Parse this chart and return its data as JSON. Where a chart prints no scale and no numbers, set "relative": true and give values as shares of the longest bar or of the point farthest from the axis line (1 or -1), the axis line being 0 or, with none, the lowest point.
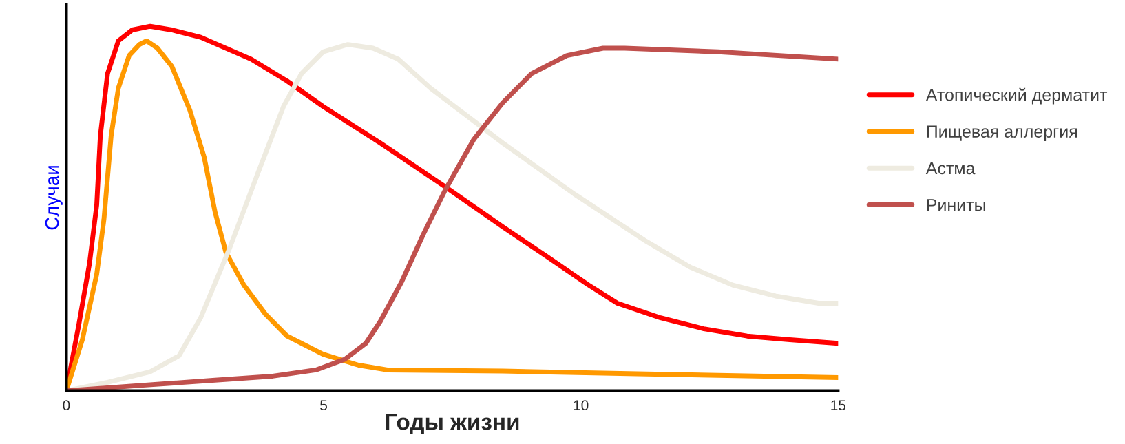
{
  "chart_data": {
    "type": "line",
    "relative": true,
    "xlabel": "Годы жизни",
    "ylabel": "Случаи",
    "xlim": [
      0,
      15
    ],
    "xticks": [
      0,
      5,
      10,
      15
    ],
    "grid": false,
    "legend": "right",
    "line_style": "solid",
    "marker": "none",
    "series": [
      {
        "name": "Атопический дерматит",
        "color": "#ff0000",
        "x": [
          0,
          0.24,
          0.45,
          0.59,
          0.66,
          0.8,
          1.01,
          1.28,
          1.63,
          2.05,
          2.61,
          3.59,
          4.29,
          4.99,
          6.1,
          7.36,
          8.48,
          9.32,
          10.15,
          10.71,
          11.55,
          12.39,
          13.23,
          14.06,
          15
        ],
        "values": [
          0,
          0.18,
          0.35,
          0.51,
          0.7,
          0.87,
          0.96,
          0.99,
          1.0,
          0.99,
          0.97,
          0.91,
          0.85,
          0.78,
          0.68,
          0.56,
          0.45,
          0.37,
          0.29,
          0.24,
          0.2,
          0.17,
          0.15,
          0.14,
          0.13
        ]
      },
      {
        "name": "Пищевая аллергия",
        "color": "#ff9900",
        "x": [
          0,
          0.31,
          0.59,
          0.73,
          0.87,
          1.01,
          1.22,
          1.42,
          1.56,
          1.77,
          2.05,
          2.4,
          2.68,
          2.89,
          3.1,
          3.45,
          3.87,
          4.29,
          4.99,
          5.68,
          6.24,
          8.48,
          11.27,
          15
        ],
        "values": [
          0,
          0.14,
          0.32,
          0.47,
          0.7,
          0.83,
          0.92,
          0.95,
          0.96,
          0.94,
          0.89,
          0.77,
          0.64,
          0.49,
          0.38,
          0.29,
          0.21,
          0.15,
          0.1,
          0.07,
          0.057,
          0.054,
          0.046,
          0.036
        ]
      },
      {
        "name": "Астма",
        "color": "#eeebe0",
        "x": [
          0,
          0.8,
          1.63,
          2.19,
          2.61,
          3.17,
          3.73,
          4.22,
          4.57,
          4.99,
          5.47,
          5.96,
          6.45,
          7.08,
          8.48,
          9.87,
          11.27,
          12.11,
          12.95,
          13.78,
          14.62,
          15
        ],
        "values": [
          0,
          0.023,
          0.052,
          0.096,
          0.2,
          0.39,
          0.6,
          0.78,
          0.87,
          0.93,
          0.95,
          0.94,
          0.91,
          0.83,
          0.68,
          0.54,
          0.41,
          0.34,
          0.29,
          0.26,
          0.24,
          0.24
        ]
      },
      {
        "name": "Риниты",
        "color": "#c0504d",
        "x": [
          0,
          1.49,
          2.89,
          4.01,
          4.85,
          5.41,
          5.82,
          6.1,
          6.52,
          6.94,
          7.36,
          7.92,
          8.48,
          9.04,
          9.73,
          10.43,
          10.85,
          12.67,
          15
        ],
        "values": [
          0,
          0.015,
          0.029,
          0.04,
          0.057,
          0.086,
          0.13,
          0.19,
          0.3,
          0.43,
          0.55,
          0.69,
          0.79,
          0.87,
          0.92,
          0.94,
          0.94,
          0.93,
          0.91
        ]
      }
    ]
  }
}
